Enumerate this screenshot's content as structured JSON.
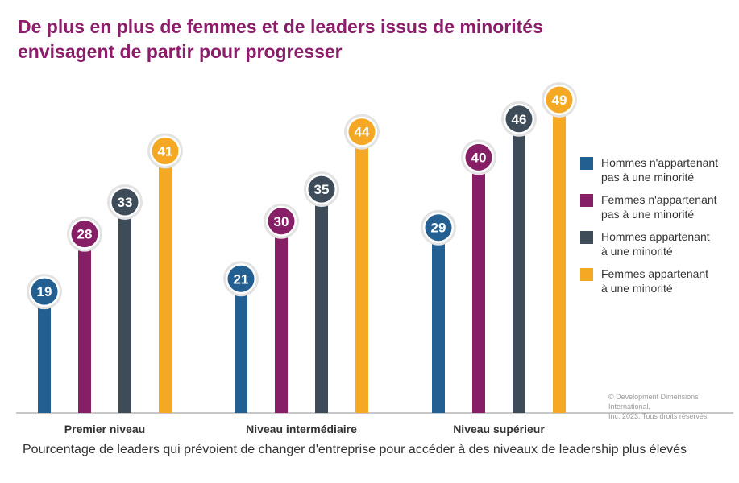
{
  "title_line1": "De plus en plus de femmes et de leaders issus de minorités",
  "title_line2": "envisagent de partir pour progresser",
  "copyright_line1": "© Development Dimensions International,",
  "copyright_line2": "Inc. 2023. Tous droits réservés.",
  "colors": {
    "title": "#8b1d6a",
    "men_non_minority": "#245f91",
    "women_non_minority": "#861f66",
    "men_minority": "#3e4c5a",
    "women_minority": "#f4a823"
  },
  "chart_data": {
    "type": "bar",
    "title": "De plus en plus de femmes et de leaders issus de minorités envisagent de partir pour progresser",
    "xlabel": "Pourcentage de leaders qui prévoient de changer d'entreprise pour accéder à des niveaux de leadership plus élevés",
    "ylabel": "",
    "ylim": [
      0,
      50
    ],
    "grid": false,
    "legend_position": "right",
    "categories": [
      "Premier niveau",
      "Niveau intermédiaire",
      "Niveau supérieur"
    ],
    "series": [
      {
        "name": "Hommes n'appartenant\npas à une minorité",
        "color": "#245f91",
        "values": [
          19,
          21,
          29
        ]
      },
      {
        "name": "Femmes n'appartenant\npas à une minorité",
        "color": "#861f66",
        "values": [
          28,
          30,
          40
        ]
      },
      {
        "name": "Hommes appartenant\nà une minorité",
        "color": "#3e4c5a",
        "values": [
          33,
          35,
          46
        ]
      },
      {
        "name": "Femmes appartenant\nà une minorité",
        "color": "#f4a823",
        "values": [
          41,
          44,
          49
        ]
      }
    ]
  }
}
